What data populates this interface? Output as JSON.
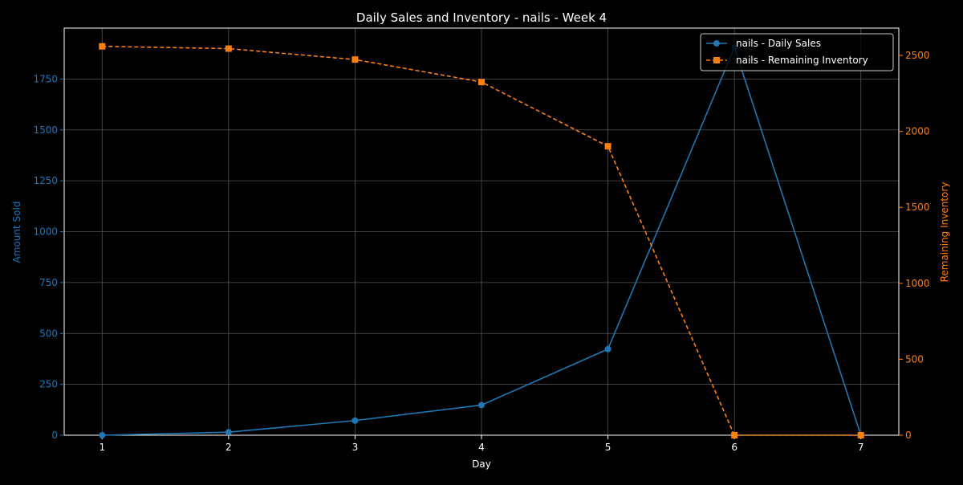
{
  "chart_data": {
    "type": "line",
    "title": "Daily Sales and Inventory - nails - Week 4",
    "xlabel": "Day",
    "ylabel_left": "Amount Sold",
    "ylabel_right": "Remaining Inventory",
    "x": [
      1,
      2,
      3,
      4,
      5,
      6,
      7
    ],
    "x_ticks": [
      "1",
      "2",
      "3",
      "4",
      "5",
      "6",
      "7"
    ],
    "xlim": [
      0.7,
      7.3
    ],
    "ylim_left": [
      0,
      2000
    ],
    "ylim_right": [
      0,
      2680
    ],
    "y_ticks_left": [
      0,
      250,
      500,
      750,
      1000,
      1250,
      1500,
      1750
    ],
    "y_ticks_right": [
      0,
      500,
      1000,
      1500,
      2000,
      2500
    ],
    "grid": true,
    "legend_position": "top-right",
    "series": [
      {
        "name": "nails - Daily Sales",
        "axis": "left",
        "values": [
          0,
          15,
          72,
          148,
          423,
          1905,
          0
        ],
        "color": "#1f77b4",
        "line_style": "solid",
        "marker": "circle"
      },
      {
        "name": "nails - Remaining Inventory",
        "axis": "right",
        "values": [
          2560,
          2545,
          2473,
          2325,
          1902,
          0,
          0
        ],
        "color": "#ff7f0e",
        "line_style": "dashed",
        "marker": "square"
      }
    ]
  },
  "colors": {
    "background": "#000000",
    "text": "#ffffff",
    "grid": "#555555",
    "left_axis": "#1f77b4",
    "right_axis": "#ff7f0e"
  }
}
